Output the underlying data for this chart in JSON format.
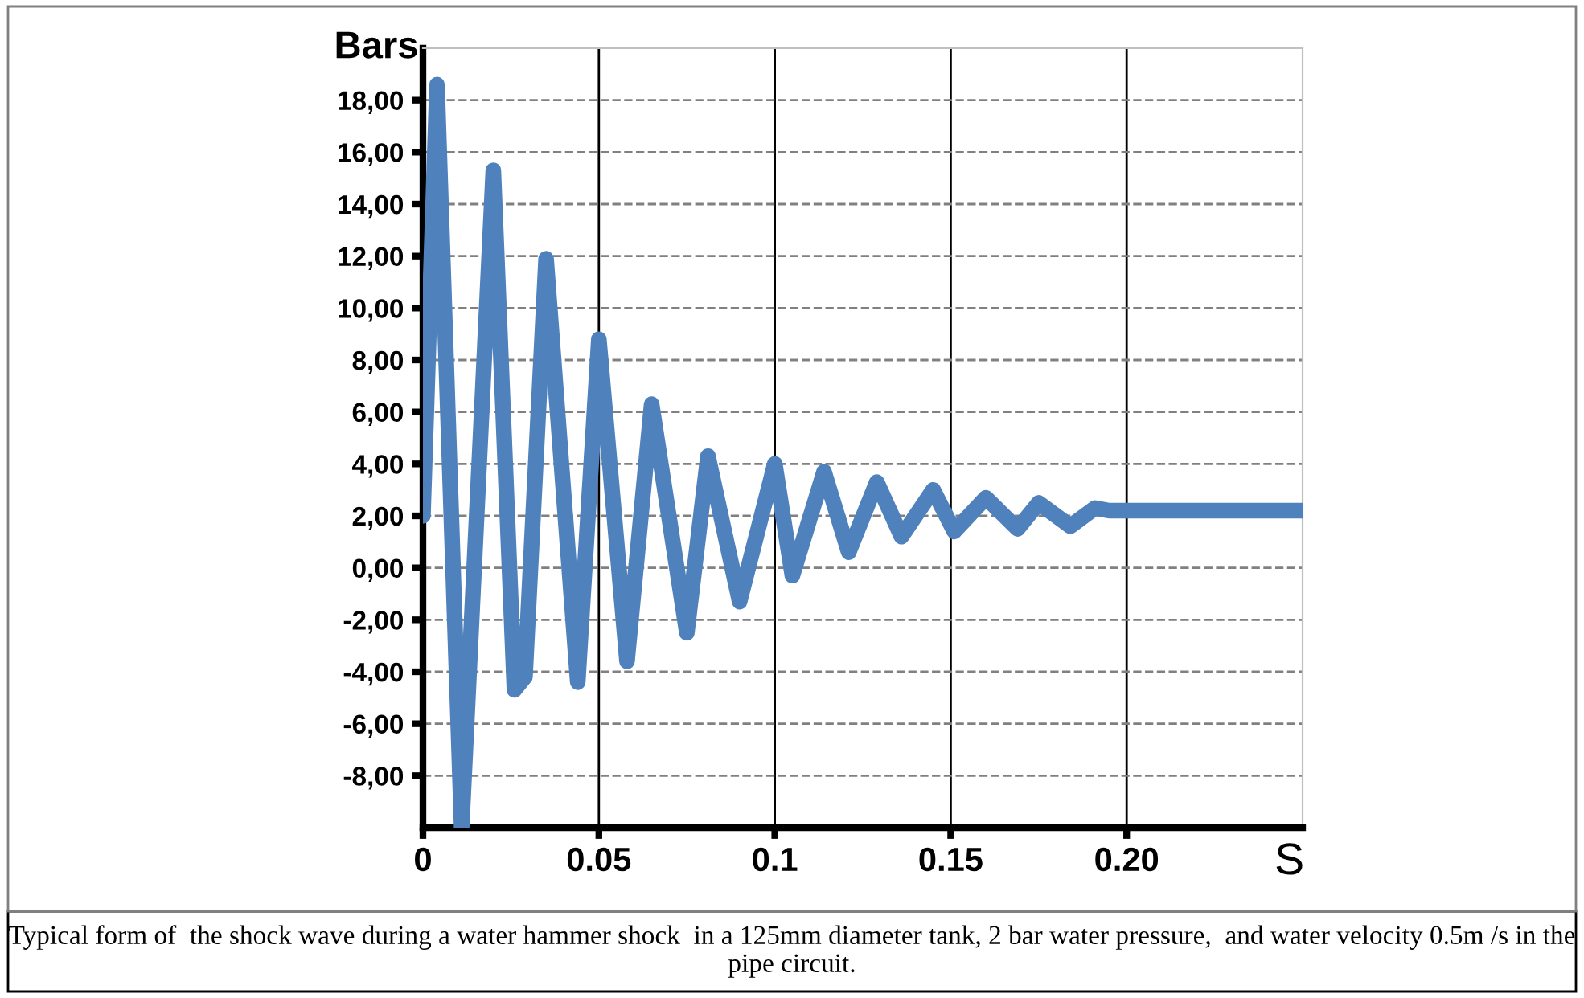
{
  "chart_data": {
    "type": "line",
    "ylabel": "Bars",
    "xlabel": "S",
    "annotations": [
      "Typical form of  the shock wave during a water hammer shock  in a 125mm diameter tank, 2 bar water pressure,  and water velocity 0.5m /s in the pipe circuit."
    ],
    "x": [
      0,
      0.004,
      0.011,
      0.02,
      0.026,
      0.029,
      0.035,
      0.044,
      0.05,
      0.058,
      0.065,
      0.075,
      0.081,
      0.09,
      0.1,
      0.105,
      0.114,
      0.121,
      0.129,
      0.136,
      0.145,
      0.151,
      0.16,
      0.169,
      0.175,
      0.184,
      0.191,
      0.195,
      0.25
    ],
    "series": [
      {
        "color": "#4f81bd",
        "values": [
          2,
          18.6,
          -10,
          15.3,
          -4.7,
          -4.2,
          11.9,
          -4.4,
          8.8,
          -3.6,
          6.3,
          -2.5,
          4.3,
          -1.3,
          4.0,
          -0.3,
          3.7,
          0.6,
          3.3,
          1.2,
          3.0,
          1.4,
          2.7,
          1.5,
          2.5,
          1.6,
          2.3,
          2.2,
          2.2
        ]
      }
    ],
    "xlim": [
      0,
      0.25
    ],
    "ylim": [
      -10,
      20
    ],
    "xticks": [
      0,
      0.05,
      0.1,
      0.15,
      {
        "value": 0.2,
        "label": "0.20"
      }
    ],
    "yticks": [
      {
        "value": -8,
        "label": "-8,00"
      },
      {
        "value": -6,
        "label": "-6,00"
      },
      {
        "value": -4,
        "label": "-4,00"
      },
      {
        "value": -2,
        "label": "-2,00"
      },
      {
        "value": 0,
        "label": "0,00"
      },
      {
        "value": 2,
        "label": "2,00"
      },
      {
        "value": 4,
        "label": "4,00"
      },
      {
        "value": 6,
        "label": "6,00"
      },
      {
        "value": 8,
        "label": "8,00"
      },
      {
        "value": 10,
        "label": "10,00"
      },
      {
        "value": 12,
        "label": "12,00"
      },
      {
        "value": 14,
        "label": "14,00"
      },
      {
        "value": 16,
        "label": "16,00"
      },
      {
        "value": 18,
        "label": "18,00"
      }
    ],
    "grid": true,
    "legend": false,
    "marker": "none",
    "line_style": "solid"
  }
}
